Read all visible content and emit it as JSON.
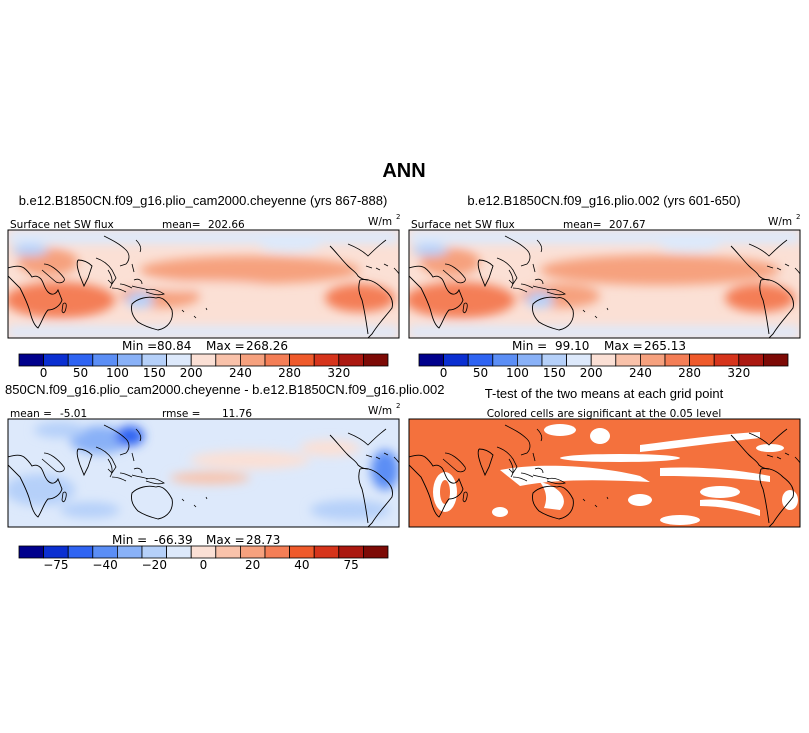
{
  "figure": {
    "title": "ANN"
  },
  "chart_data": [
    {
      "type": "heatmap",
      "id": "p1",
      "title": "b.e12.B1850CN.f09_g16.plio_cam2000.cheyenne (yrs 867-888)",
      "variable": "Surface net SW flux",
      "mean_label": "mean=",
      "mean": "202.66",
      "units": "W/m",
      "units_sup": "2",
      "min_label": "Min =",
      "min": "80.84",
      "max_label": "Max =",
      "max": "268.26",
      "colorbar": {
        "levels": [
          0,
          25,
          50,
          75,
          100,
          125,
          150,
          175,
          200,
          220,
          240,
          260,
          280,
          300,
          320
        ],
        "labels": [
          "0",
          "50",
          "100",
          "150",
          "200",
          "240",
          "280",
          "320"
        ],
        "colors": [
          "#00008c",
          "#0b2fd1",
          "#2f64f2",
          "#5b8ef5",
          "#89b1f7",
          "#b5d0f9",
          "#dde9fb",
          "#fbe0d5",
          "#f9c2aa",
          "#f6a17e",
          "#f47e56",
          "#ef5a2b",
          "#d6341b",
          "#ab1810",
          "#7d0a06"
        ]
      }
    },
    {
      "type": "heatmap",
      "id": "p2",
      "title": "b.e12.B1850CN.f09_g16.plio.002 (yrs 601-650)",
      "variable": "Surface net SW flux",
      "mean_label": "mean=",
      "mean": "207.67",
      "units": "W/m",
      "units_sup": "2",
      "min_label": "Min =",
      "min": "99.10",
      "max_label": "Max =",
      "max": "265.13",
      "colorbar": {
        "levels": [
          0,
          25,
          50,
          75,
          100,
          125,
          150,
          175,
          200,
          220,
          240,
          260,
          280,
          300,
          320
        ],
        "labels": [
          "0",
          "50",
          "100",
          "150",
          "200",
          "240",
          "280",
          "320"
        ],
        "colors": [
          "#00008c",
          "#0b2fd1",
          "#2f64f2",
          "#5b8ef5",
          "#89b1f7",
          "#b5d0f9",
          "#dde9fb",
          "#fbe0d5",
          "#f9c2aa",
          "#f6a17e",
          "#f47e56",
          "#ef5a2b",
          "#d6341b",
          "#ab1810",
          "#7d0a06"
        ]
      }
    },
    {
      "type": "heatmap",
      "id": "p3",
      "title": "850CN.f09_g16.plio_cam2000.cheyenne - b.e12.B1850CN.f09_g16.plio.002",
      "mean_label": "mean =",
      "mean": "-5.01",
      "rmse_label": "rmse =",
      "rmse": "11.76",
      "units": "W/m",
      "units_sup": "2",
      "min_label": "Min =",
      "min": "-66.39",
      "max_label": "Max =",
      "max": "28.73",
      "colorbar": {
        "labels": [
          "-75",
          "-40",
          "-20",
          "0",
          "20",
          "40",
          "75"
        ],
        "colors": [
          "#00008c",
          "#0b2fd1",
          "#2f64f2",
          "#5b8ef5",
          "#89b1f7",
          "#b5d0f9",
          "#dde9fb",
          "#fbe0d5",
          "#f9c2aa",
          "#f6a17e",
          "#f47e56",
          "#ef5a2b",
          "#d6341b",
          "#ab1810",
          "#7d0a06"
        ]
      }
    },
    {
      "type": "heatmap",
      "id": "p4",
      "title": "T-test of the two means at each grid point",
      "subtitle": "Colored cells are significant at the 0.05 level",
      "significant_color": "#f4713d"
    }
  ]
}
